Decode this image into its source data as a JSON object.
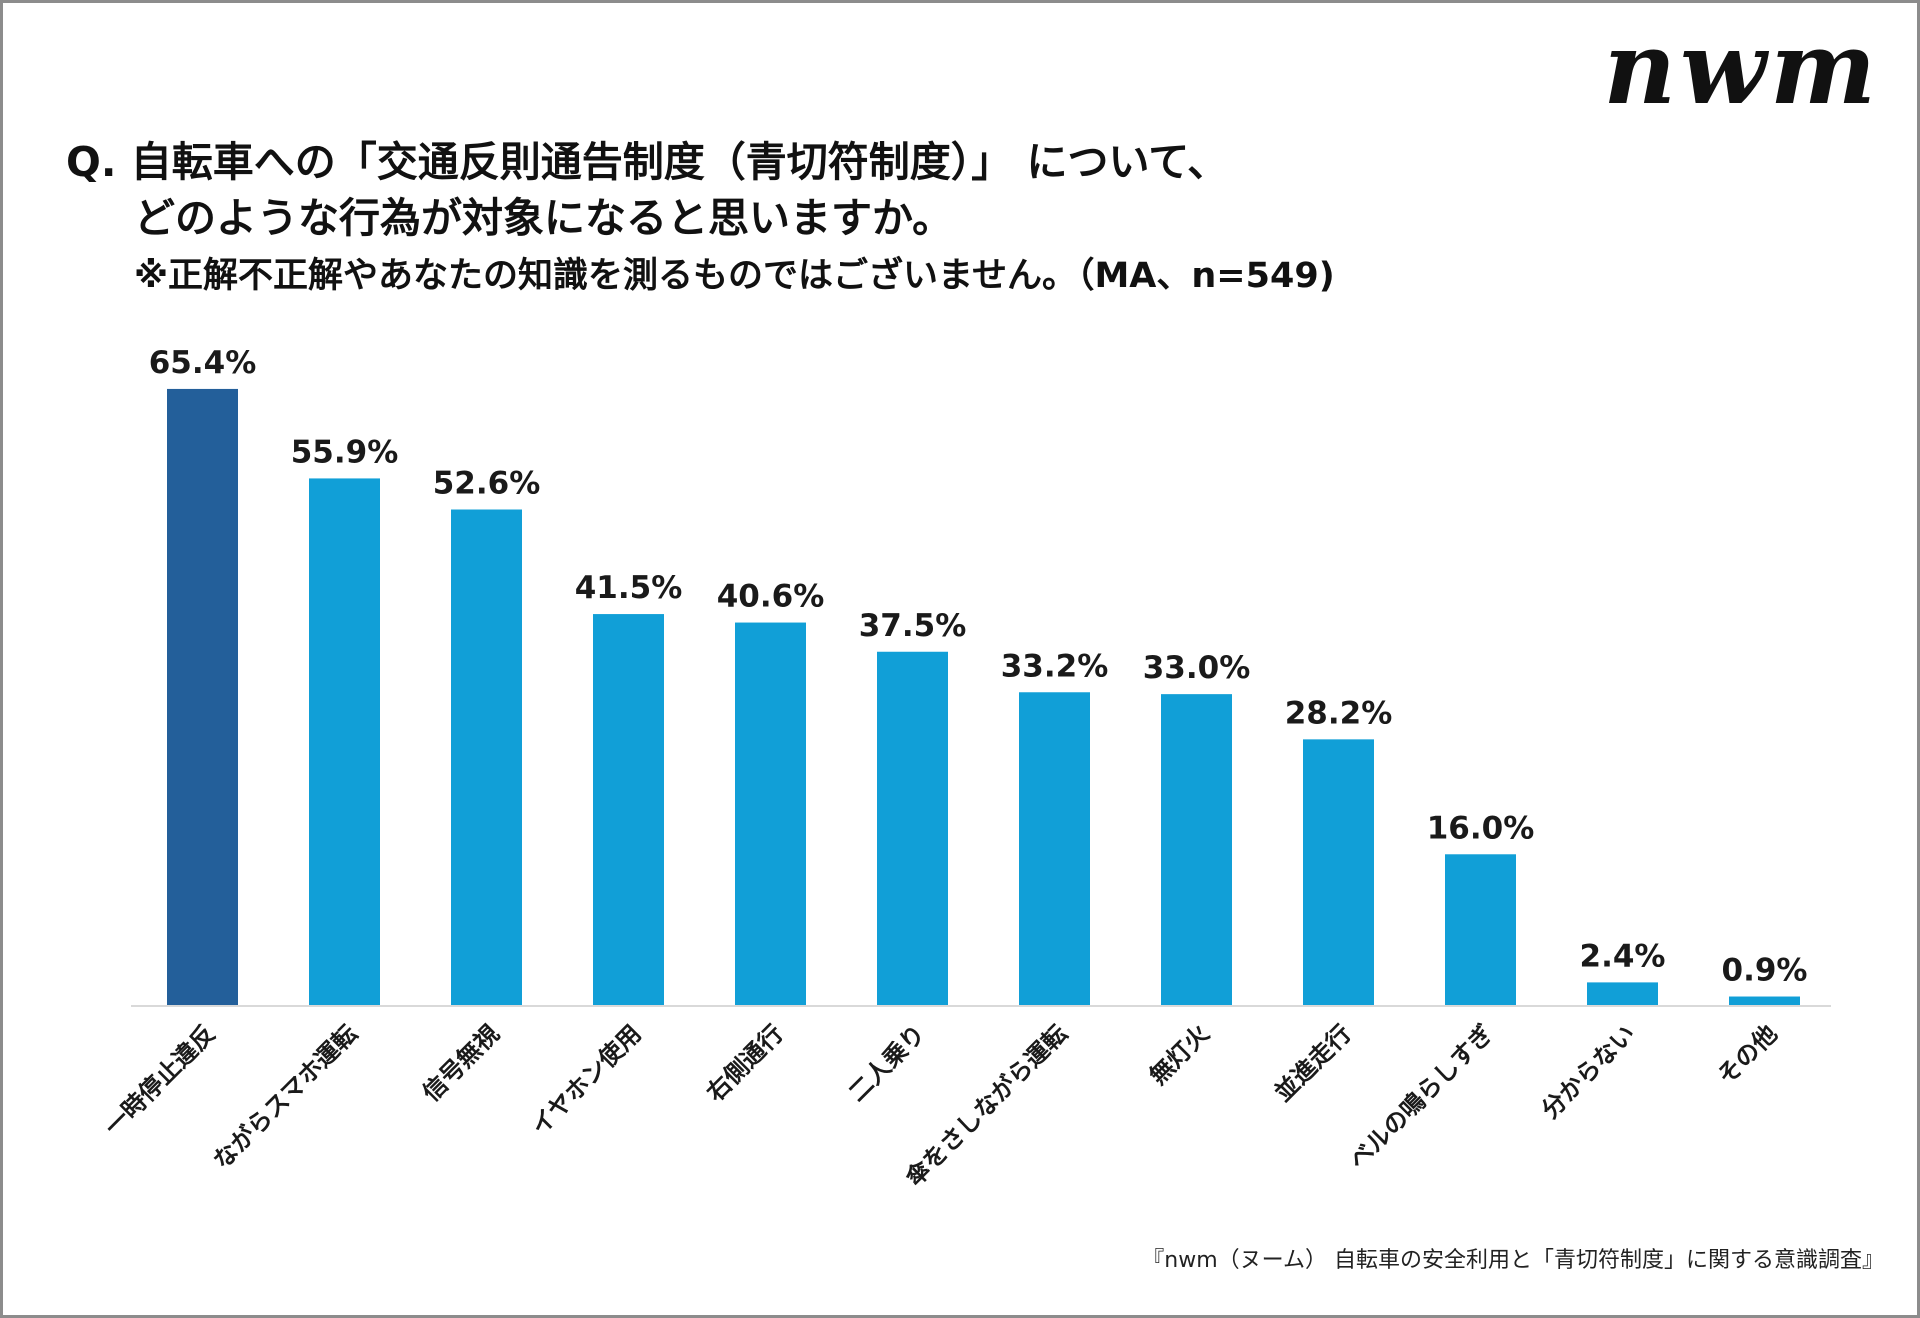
{
  "logo": "nwm",
  "title": {
    "line1": "Q. 自転車への「交通反則通告制度（青切符制度）」 について、",
    "line2": "どのような行為が対象になると思いますか。",
    "line3": "※正解不正解やあなたの知識を測るものではございません。（MA、n=549)"
  },
  "footer": "『nwm（ヌーム） 自転車の安全利用と「青切符制度」に関する意識調査』",
  "colors": {
    "highlight": "#235F9A",
    "bar": "#119FD7",
    "axis": "#d9d9d9"
  },
  "chart_data": {
    "type": "bar",
    "categories": [
      "一時停止違反",
      "ながらスマホ運転",
      "信号無視",
      "イヤホン使用",
      "右側通行",
      "二人乗り",
      "傘をさしながら運転",
      "無灯火",
      "並進走行",
      "ベルの鳴らしすぎ",
      "分からない",
      "その他"
    ],
    "values": [
      65.4,
      55.9,
      52.6,
      41.5,
      40.6,
      37.5,
      33.2,
      33.0,
      28.2,
      16.0,
      2.4,
      0.9
    ],
    "labels": [
      "65.4%",
      "55.9%",
      "52.6%",
      "41.5%",
      "40.6%",
      "37.5%",
      "33.2%",
      "33.0%",
      "28.2%",
      "16.0%",
      "2.4%",
      "0.9%"
    ],
    "unit": "%",
    "highlighted_index": 0,
    "ylim": [
      0,
      70
    ],
    "grid": false,
    "xlabel": "",
    "ylabel": ""
  }
}
